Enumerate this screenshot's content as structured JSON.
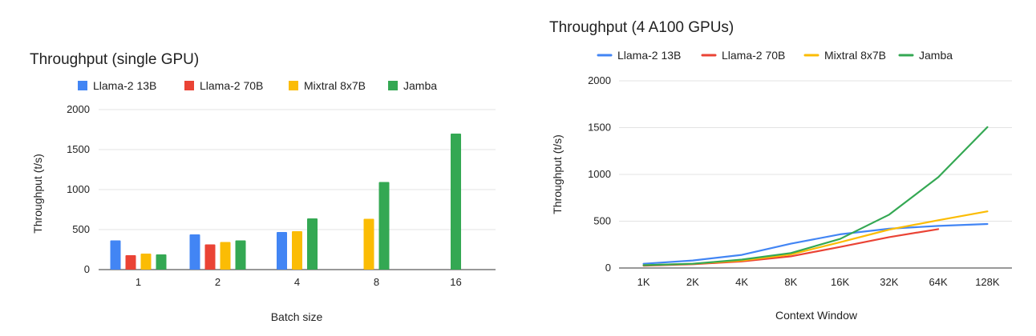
{
  "colors": {
    "Llama-2 13B": "#4285F4",
    "Llama-2 70B": "#EA4335",
    "Mixtral 8x7B": "#FBBC04",
    "Jamba": "#34A853"
  },
  "chart_data": [
    {
      "type": "bar",
      "title": "Throughput (single GPU)",
      "xlabel": "Batch size",
      "ylabel": "Throughput (t/s)",
      "categories": [
        "1",
        "2",
        "4",
        "8",
        "16"
      ],
      "ylim": [
        0,
        2000
      ],
      "yticks": [
        0,
        500,
        1000,
        1500,
        2000
      ],
      "ytick_labels": [
        "0",
        "500",
        "1000",
        "1500",
        "2000"
      ],
      "grid": true,
      "legend": "top",
      "series": [
        {
          "name": "Llama-2 13B",
          "values": [
            365,
            440,
            470,
            null,
            null
          ]
        },
        {
          "name": "Llama-2 70B",
          "values": [
            180,
            315,
            null,
            null,
            null
          ]
        },
        {
          "name": "Mixtral 8x7B",
          "values": [
            200,
            345,
            480,
            635,
            null
          ]
        },
        {
          "name": "Jamba",
          "values": [
            190,
            365,
            640,
            1095,
            1700
          ]
        }
      ]
    },
    {
      "type": "line",
      "title": "Throughput (4 A100 GPUs)",
      "xlabel": "Context Window",
      "ylabel": "Throughput (t/s)",
      "categories": [
        "1K",
        "2K",
        "4K",
        "8K",
        "16K",
        "32K",
        "64K",
        "128K"
      ],
      "ylim": [
        0,
        2000
      ],
      "yticks": [
        0,
        500,
        1000,
        1500,
        2000
      ],
      "ytick_labels": [
        "0",
        "500",
        "1000",
        "1500",
        "2000"
      ],
      "grid": true,
      "legend": "top",
      "series": [
        {
          "name": "Llama-2 13B",
          "values": [
            45,
            80,
            140,
            260,
            360,
            420,
            450,
            470
          ]
        },
        {
          "name": "Llama-2 70B",
          "values": [
            25,
            40,
            70,
            125,
            225,
            330,
            415,
            null
          ]
        },
        {
          "name": "Mixtral 8x7B",
          "values": [
            30,
            45,
            80,
            145,
            275,
            410,
            510,
            605
          ]
        },
        {
          "name": "Jamba",
          "values": [
            30,
            45,
            90,
            160,
            310,
            570,
            970,
            1505
          ]
        }
      ]
    }
  ]
}
